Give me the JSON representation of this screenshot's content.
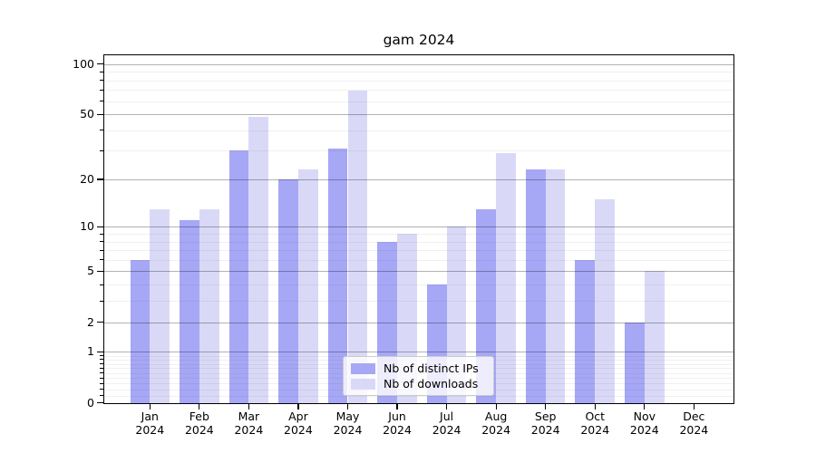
{
  "chart_data": {
    "type": "bar",
    "title": "gam 2024",
    "categories": [
      "Jan",
      "Feb",
      "Mar",
      "Apr",
      "May",
      "Jun",
      "Jul",
      "Aug",
      "Sep",
      "Oct",
      "Nov",
      "Dec"
    ],
    "year_label": "2024",
    "series": [
      {
        "name": "Nb of distinct IPs",
        "color": "#a6a7f5",
        "values": [
          6,
          11,
          30,
          20,
          31,
          8,
          4,
          13,
          23,
          6,
          2,
          0
        ]
      },
      {
        "name": "Nb of downloads",
        "color": "#d9d9f7",
        "values": [
          13,
          13,
          48,
          23,
          69,
          9,
          10,
          29,
          23,
          15,
          5,
          0
        ]
      }
    ],
    "yscale": "log1p",
    "ylim": [
      0,
      100
    ],
    "ytick_values": [
      100,
      50,
      20,
      10,
      5,
      2,
      1,
      0
    ],
    "ytick_labels": [
      "100",
      "50",
      "20",
      "10",
      "5",
      "2",
      "1",
      "0"
    ],
    "minor_tick_values": [
      90,
      80,
      70,
      60,
      40,
      30,
      9,
      8,
      7,
      6,
      4,
      3,
      0.9,
      0.8,
      0.7,
      0.6,
      0.5,
      0.4,
      0.3,
      0.2,
      0.1
    ],
    "grid": true,
    "legend_position": "lower center",
    "colors": {
      "grid_major": "rgba(0,0,0,0.30)",
      "grid_minor": "rgba(60,60,90,0.08)",
      "axis": "#000000",
      "legend_border": "#cccccc"
    }
  }
}
